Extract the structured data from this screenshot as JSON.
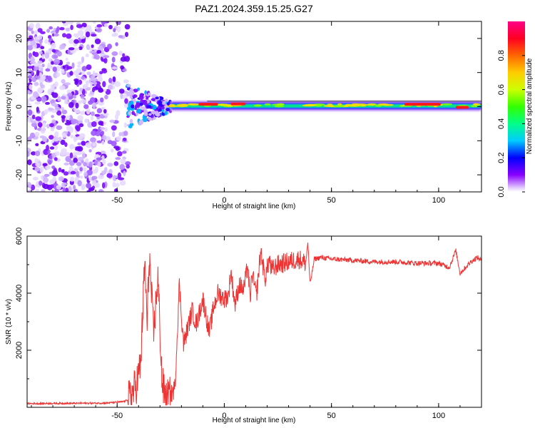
{
  "title": "PAZ1.2024.359.15.25.G27",
  "chart_data": [
    {
      "type": "heatmap",
      "title": "PAZ1.2024.359.15.25.G27",
      "xlabel": "Height of straight line (km)",
      "ylabel": "Frequency (Hz)",
      "xlim": [
        -92,
        120
      ],
      "ylim": [
        -25,
        25
      ],
      "xticks": [
        -50,
        0,
        50,
        100
      ],
      "yticks": [
        -20,
        -10,
        0,
        10,
        20
      ],
      "colorbar": {
        "label": "Normalized spectral amplitude",
        "range": [
          0,
          1
        ],
        "ticks": [
          "0.0",
          "0.2",
          "0.4",
          "0.6",
          "0.8"
        ],
        "colormap": "gist_rainbow_r"
      },
      "regions": [
        {
          "x_range": [
            -92,
            -45
          ],
          "frequency_range": [
            -25,
            25
          ],
          "description": "scattered noise",
          "amplitude_max": 0.25
        },
        {
          "x_range": [
            -45,
            -25
          ],
          "frequency_range": [
            -5,
            5
          ],
          "description": "transition",
          "amplitude_max": 0.5
        },
        {
          "x_range": [
            -25,
            120
          ],
          "frequency_range": [
            -1.5,
            1.5
          ],
          "description": "narrow line at 0 Hz",
          "amplitude_max": 1.0
        }
      ],
      "peak_segments": [
        {
          "x": [
            -12,
            -3
          ],
          "freq": 0.7
        },
        {
          "x": [
            3,
            10
          ],
          "freq": 0.8
        },
        {
          "x": [
            84,
            101
          ],
          "freq": 0.7
        },
        {
          "x": [
            108,
            114
          ],
          "freq": -0.2
        }
      ]
    },
    {
      "type": "line",
      "xlabel": "Height of straight line (km)",
      "ylabel": "SNR (10 * v/v)",
      "xlim": [
        -92,
        120
      ],
      "ylim": [
        0,
        6000
      ],
      "xticks": [
        -50,
        0,
        50,
        100
      ],
      "yticks": [
        2000,
        4000,
        6000
      ],
      "color": "#ee3333",
      "x": [
        -92,
        -70,
        -55,
        -47,
        -44,
        -41,
        -39,
        -38,
        -37,
        -36,
        -35,
        -33,
        -31,
        -29,
        -27,
        -25,
        -23,
        -21,
        -19,
        -17,
        -15,
        -13,
        -10,
        -7,
        -5,
        -3,
        0,
        2,
        3,
        5,
        7,
        9,
        11,
        12,
        13,
        15,
        17,
        19,
        21,
        22,
        25,
        30,
        35,
        38,
        39,
        40,
        42,
        45,
        50,
        60,
        70,
        80,
        90,
        100,
        105,
        108,
        110,
        115,
        118,
        120
      ],
      "y": [
        130,
        140,
        150,
        200,
        300,
        800,
        1500,
        3500,
        5100,
        2800,
        5400,
        2500,
        4600,
        800,
        300,
        400,
        700,
        4300,
        2200,
        2800,
        3400,
        2900,
        3800,
        2600,
        3500,
        4000,
        3800,
        3900,
        4800,
        3600,
        4300,
        4100,
        5000,
        3700,
        4700,
        3900,
        5500,
        4500,
        5200,
        4800,
        5000,
        5100,
        5200,
        5050,
        5800,
        4300,
        5200,
        5250,
        5200,
        5150,
        5100,
        5100,
        5050,
        5050,
        4900,
        5500,
        4700,
        5100,
        5250,
        5150
      ]
    }
  ]
}
